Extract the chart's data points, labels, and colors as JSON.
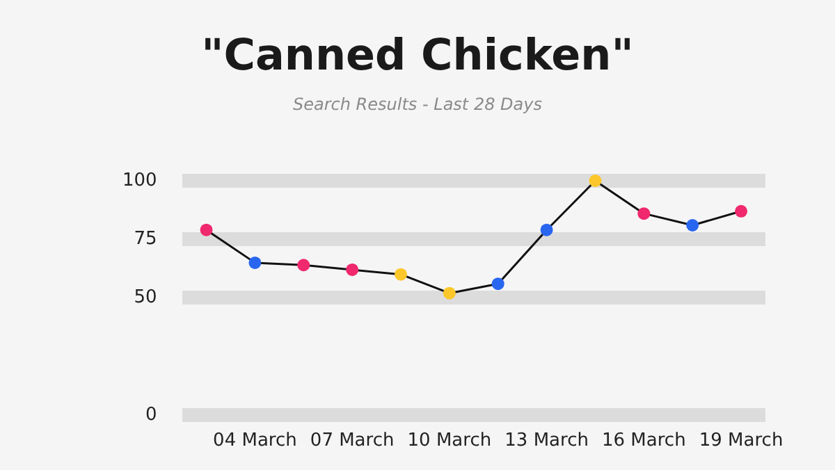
{
  "chart_data": {
    "type": "line",
    "title": "\"Canned Chicken\"",
    "subtitle": "Search Results - Last 28 Days",
    "categories": [
      null,
      "04 March",
      null,
      "07 March",
      null,
      "10 March",
      null,
      "13 March",
      null,
      "16 March",
      null,
      "19 March"
    ],
    "series": [
      {
        "color": "#111111",
        "values": [
          79,
          65,
          64,
          62,
          60,
          52,
          56,
          79,
          100,
          86,
          81,
          87
        ],
        "colors": [
          "#f0286e",
          "#2966f0",
          "#f0286e",
          "#f0286e",
          "#fcc72a",
          "#fcc72a",
          "#2966f0",
          "#2966f0",
          "#fcc72a",
          "#f0286e",
          "#2966f0",
          "#f0286e"
        ]
      }
    ],
    "ylim": [
      0,
      100
    ],
    "yticks": [
      0,
      50,
      75,
      100
    ],
    "grid": "y",
    "marker": "circle",
    "line_style": "solid",
    "legend": false
  }
}
